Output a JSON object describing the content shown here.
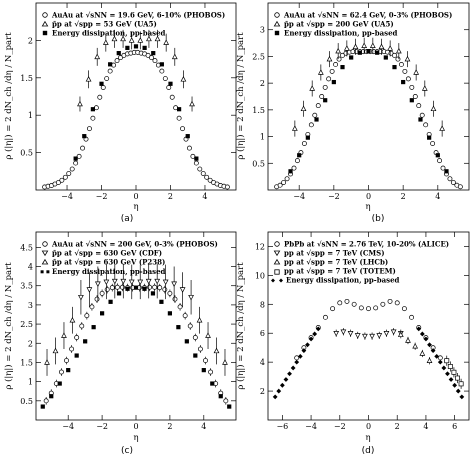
{
  "figure": {
    "panels": [
      "a",
      "b",
      "c",
      "d"
    ]
  },
  "chart_data": [
    {
      "type": "scatter",
      "panel_label": "(a)",
      "xlabel": "η",
      "ylabel": "ρ (|η|) = 2 dN_ch /dη / N_part",
      "xlim": [
        -5.8,
        5.8
      ],
      "ylim": [
        0,
        2.5
      ],
      "xticks": [
        -4,
        -2,
        0,
        2,
        4
      ],
      "yticks": [
        0.5,
        1,
        1.5,
        2
      ],
      "ytick_labels": [
        "0.5",
        "1",
        "1.5",
        "2"
      ],
      "grid": false,
      "legend_position": "top-left",
      "series": [
        {
          "name": "AuAu at √sNN = 19.6 GeV, 6-10% (PHOBOS)",
          "marker": "circle-open",
          "x": [
            -5.3,
            -5.1,
            -4.9,
            -4.7,
            -4.5,
            -4.3,
            -4.1,
            -3.9,
            -3.7,
            -3.5,
            -3.3,
            -3.1,
            -2.9,
            -2.7,
            -2.5,
            -2.3,
            -2.1,
            -1.9,
            -1.7,
            -1.5,
            -1.3,
            -1.1,
            -0.9,
            -0.7,
            -0.5,
            -0.3,
            -0.1,
            0.1,
            0.3,
            0.5,
            0.7,
            0.9,
            1.1,
            1.3,
            1.5,
            1.7,
            1.9,
            2.1,
            2.3,
            2.5,
            2.7,
            2.9,
            3.1,
            3.3,
            3.5,
            3.7,
            3.9,
            4.1,
            4.3,
            4.5,
            4.7,
            4.9,
            5.1,
            5.3
          ],
          "y": [
            0.04,
            0.05,
            0.06,
            0.08,
            0.1,
            0.13,
            0.17,
            0.22,
            0.28,
            0.36,
            0.45,
            0.56,
            0.68,
            0.82,
            0.96,
            1.1,
            1.24,
            1.37,
            1.49,
            1.59,
            1.67,
            1.73,
            1.77,
            1.8,
            1.82,
            1.83,
            1.84,
            1.84,
            1.83,
            1.82,
            1.8,
            1.77,
            1.73,
            1.67,
            1.59,
            1.49,
            1.37,
            1.24,
            1.1,
            0.96,
            0.82,
            0.68,
            0.56,
            0.45,
            0.36,
            0.28,
            0.22,
            0.17,
            0.13,
            0.1,
            0.08,
            0.06,
            0.05,
            0.04
          ]
        },
        {
          "name": "p̄p at √spp = 53 GeV (UA5)",
          "marker": "triangle-open",
          "x": [
            -3.25,
            -2.75,
            -2.25,
            -1.75,
            -1.25,
            -0.75,
            -0.25,
            0.25,
            0.75,
            1.25,
            1.75,
            2.25,
            2.75,
            3.25
          ],
          "y": [
            1.15,
            1.48,
            1.78,
            1.97,
            2.02,
            2.02,
            2.0,
            2.0,
            2.02,
            2.02,
            1.97,
            1.78,
            1.48,
            1.15
          ],
          "err": [
            0.1,
            0.12,
            0.12,
            0.12,
            0.12,
            0.12,
            0.12,
            0.12,
            0.12,
            0.12,
            0.12,
            0.12,
            0.12,
            0.1
          ]
        },
        {
          "name": "Energy dissipation, pp-based",
          "marker": "square-filled",
          "x": [
            -3.5,
            -3.0,
            -2.5,
            -2.0,
            -1.5,
            -1.0,
            -0.5,
            0.0,
            0.5,
            1.0,
            1.5,
            2.0,
            2.5,
            3.0,
            3.5
          ],
          "y": [
            0.42,
            0.72,
            1.08,
            1.42,
            1.68,
            1.83,
            1.9,
            1.92,
            1.9,
            1.83,
            1.68,
            1.42,
            1.08,
            0.72,
            0.42
          ]
        }
      ]
    },
    {
      "type": "scatter",
      "panel_label": "(b)",
      "xlabel": "η",
      "ylabel": "ρ (|η|) = 2 dN_ch /dη / N_part",
      "xlim": [
        -5.8,
        5.8
      ],
      "ylim": [
        0,
        3.5
      ],
      "xticks": [
        -4,
        -2,
        0,
        2,
        4
      ],
      "yticks": [
        0.5,
        1,
        1.5,
        2,
        2.5,
        3
      ],
      "ytick_labels": [
        "0.5",
        "1",
        "1.5",
        "2",
        "2.5",
        "3"
      ],
      "grid": false,
      "legend_position": "top-left",
      "series": [
        {
          "name": "AuAu at √sNN = 62.4 GeV, 0-3% (PHOBOS)",
          "marker": "circle-open",
          "x": [
            -5.3,
            -5.1,
            -4.9,
            -4.7,
            -4.5,
            -4.3,
            -4.1,
            -3.9,
            -3.7,
            -3.5,
            -3.3,
            -3.1,
            -2.9,
            -2.7,
            -2.5,
            -2.3,
            -2.1,
            -1.9,
            -1.7,
            -1.5,
            -1.3,
            -1.1,
            -0.9,
            -0.7,
            -0.5,
            -0.3,
            -0.1,
            0.1,
            0.3,
            0.5,
            0.7,
            0.9,
            1.1,
            1.3,
            1.5,
            1.7,
            1.9,
            2.1,
            2.3,
            2.5,
            2.7,
            2.9,
            3.1,
            3.3,
            3.5,
            3.7,
            3.9,
            4.1,
            4.3,
            4.5,
            4.7,
            4.9,
            5.1,
            5.3
          ],
          "y": [
            0.06,
            0.09,
            0.14,
            0.21,
            0.3,
            0.41,
            0.55,
            0.7,
            0.87,
            1.04,
            1.22,
            1.4,
            1.58,
            1.75,
            1.92,
            2.08,
            2.22,
            2.35,
            2.45,
            2.52,
            2.56,
            2.58,
            2.59,
            2.59,
            2.59,
            2.59,
            2.59,
            2.59,
            2.59,
            2.59,
            2.59,
            2.59,
            2.58,
            2.56,
            2.52,
            2.45,
            2.35,
            2.22,
            2.08,
            1.92,
            1.75,
            1.58,
            1.4,
            1.22,
            1.04,
            0.87,
            0.7,
            0.55,
            0.41,
            0.3,
            0.21,
            0.14,
            0.09,
            0.06
          ]
        },
        {
          "name": "p̄p at √spp = 200 GeV (UA5)",
          "marker": "triangle-open",
          "x": [
            -4.25,
            -3.75,
            -3.25,
            -2.75,
            -2.25,
            -1.75,
            -1.25,
            -0.75,
            -0.25,
            0.25,
            0.75,
            1.25,
            1.75,
            2.25,
            2.75,
            3.25,
            3.75,
            4.25
          ],
          "y": [
            1.15,
            1.52,
            1.9,
            2.2,
            2.45,
            2.6,
            2.65,
            2.68,
            2.7,
            2.7,
            2.68,
            2.65,
            2.6,
            2.45,
            2.2,
            1.9,
            1.52,
            1.15
          ],
          "err": [
            0.15,
            0.15,
            0.15,
            0.15,
            0.15,
            0.15,
            0.15,
            0.15,
            0.15,
            0.15,
            0.15,
            0.15,
            0.15,
            0.15,
            0.15,
            0.15,
            0.15,
            0.15
          ]
        },
        {
          "name": "Energy dissipation, pp-based",
          "marker": "square-filled",
          "x": [
            -4.5,
            -4.0,
            -3.5,
            -3.0,
            -2.5,
            -2.0,
            -1.5,
            -1.0,
            -0.5,
            0.0,
            0.5,
            1.0,
            1.5,
            2.0,
            2.5,
            3.0,
            3.5,
            4.0,
            4.5
          ],
          "y": [
            0.35,
            0.65,
            0.98,
            1.32,
            1.68,
            2.02,
            2.3,
            2.48,
            2.57,
            2.6,
            2.57,
            2.48,
            2.3,
            2.02,
            1.68,
            1.32,
            0.98,
            0.65,
            0.35
          ]
        }
      ]
    },
    {
      "type": "scatter",
      "panel_label": "(c)",
      "xlabel": "η",
      "ylabel": "ρ (|η|) = 2 dN_ch /dη / N_part",
      "xlim": [
        -5.9,
        5.9
      ],
      "ylim": [
        0,
        4.9
      ],
      "xticks": [
        -4,
        -2,
        0,
        2,
        4
      ],
      "yticks": [
        0.5,
        1,
        1.5,
        2,
        2.5,
        3,
        3.5,
        4,
        4.5
      ],
      "ytick_labels": [
        "0.5",
        "1",
        "1.5",
        "2",
        "2.5",
        "3",
        "3.5",
        "4",
        "4.5"
      ],
      "grid": false,
      "legend_position": "top-left",
      "series": [
        {
          "name": "AuAu at √sNN = 200 GeV, 0-3% (PHOBOS)",
          "marker": "circle-open",
          "x": [
            -5.3,
            -5.0,
            -4.7,
            -4.4,
            -4.1,
            -3.8,
            -3.5,
            -3.2,
            -2.9,
            -2.6,
            -2.3,
            -2.0,
            -1.7,
            -1.4,
            -1.1,
            -0.8,
            -0.5,
            -0.2,
            0.2,
            0.5,
            0.8,
            1.1,
            1.4,
            1.7,
            2.0,
            2.3,
            2.6,
            2.9,
            3.2,
            3.5,
            3.8,
            4.1,
            4.4,
            4.7,
            5.0,
            5.3
          ],
          "y": [
            0.5,
            0.7,
            0.95,
            1.25,
            1.55,
            1.85,
            2.15,
            2.45,
            2.72,
            2.95,
            3.15,
            3.3,
            3.4,
            3.45,
            3.46,
            3.46,
            3.45,
            3.45,
            3.45,
            3.45,
            3.46,
            3.46,
            3.45,
            3.4,
            3.3,
            3.15,
            2.95,
            2.72,
            2.45,
            2.15,
            1.85,
            1.55,
            1.25,
            0.95,
            0.7,
            0.5
          ],
          "err": [
            0.1,
            0.1,
            0.1,
            0.1,
            0.1,
            0.1,
            0.1,
            0.1,
            0.1,
            0.1,
            0.1,
            0.1,
            0.1,
            0.1,
            0.1,
            0.1,
            0.1,
            0.1,
            0.1,
            0.1,
            0.1,
            0.1,
            0.1,
            0.1,
            0.1,
            0.1,
            0.1,
            0.1,
            0.1,
            0.1,
            0.1,
            0.1,
            0.1,
            0.1,
            0.1,
            0.1
          ]
        },
        {
          "name": "p̄p at √spp = 630 GeV (CDF)",
          "marker": "triangle-down-open",
          "x": [
            -3.25,
            -2.75,
            -2.25,
            -1.75,
            -1.25,
            -0.75,
            -0.25,
            0.25,
            0.75,
            1.25,
            1.75,
            2.25,
            2.75,
            3.25
          ],
          "y": [
            3.2,
            3.4,
            3.55,
            3.6,
            3.62,
            3.62,
            3.6,
            3.6,
            3.62,
            3.62,
            3.6,
            3.55,
            3.4,
            3.2
          ],
          "err": [
            0.45,
            0.45,
            0.45,
            0.45,
            0.45,
            0.45,
            0.45,
            0.45,
            0.45,
            0.45,
            0.45,
            0.45,
            0.45,
            0.45
          ]
        },
        {
          "name": "p̄p at √spp = 630 GeV (P238)",
          "marker": "triangle-open",
          "x": [
            -5.25,
            -4.75,
            -4.25,
            -3.75,
            3.75,
            4.25,
            4.75,
            5.25
          ],
          "y": [
            1.5,
            1.8,
            2.2,
            2.6,
            2.6,
            2.2,
            1.8,
            1.5
          ],
          "err": [
            0.35,
            0.35,
            0.35,
            0.35,
            0.35,
            0.35,
            0.35,
            0.35
          ]
        },
        {
          "name": "Energy dissipation, pp-based",
          "marker": "square-filled",
          "x": [
            -5.5,
            -5.0,
            -4.5,
            -4.0,
            -3.5,
            -3.0,
            -2.5,
            -2.0,
            -1.5,
            -1.0,
            -0.5,
            0.0,
            0.5,
            1.0,
            1.5,
            2.0,
            2.5,
            3.0,
            3.5,
            4.0,
            4.5,
            5.0,
            5.5
          ],
          "y": [
            0.35,
            0.62,
            0.95,
            1.3,
            1.68,
            2.05,
            2.42,
            2.78,
            3.08,
            3.3,
            3.42,
            3.45,
            3.42,
            3.3,
            3.08,
            2.78,
            2.42,
            2.05,
            1.68,
            1.3,
            0.95,
            0.62,
            0.35
          ]
        }
      ]
    },
    {
      "type": "scatter",
      "panel_label": "(d)",
      "xlabel": "η",
      "ylabel": "ρ (|η|) = 2 dN_ch /dη / N_part",
      "xlim": [
        -7.0,
        7.0
      ],
      "ylim": [
        0,
        13.0
      ],
      "xticks": [
        -6,
        -4,
        -2,
        0,
        2,
        4,
        6
      ],
      "yticks": [
        2,
        4,
        6,
        8,
        10,
        12
      ],
      "ytick_labels": [
        "2",
        "4",
        "6",
        "8",
        "10",
        "12"
      ],
      "grid": false,
      "legend_position": "top-left",
      "series": [
        {
          "name": "PbPb at √sNN = 2.76 TeV, 10-20% (ALICE)",
          "marker": "circle-open",
          "x": [
            -5.0,
            -4.5,
            -4.0,
            -3.5,
            -3.0,
            -2.5,
            -2.0,
            -1.5,
            -1.0,
            -0.5,
            0.0,
            0.5,
            1.0,
            1.5,
            2.0,
            2.5,
            3.0,
            3.5,
            4.0,
            4.5,
            5.0
          ],
          "y": [
            4.3,
            5.0,
            5.7,
            6.4,
            7.1,
            7.7,
            8.1,
            8.2,
            8.0,
            7.75,
            7.7,
            7.75,
            8.0,
            8.2,
            8.1,
            7.7,
            7.1,
            6.4,
            5.7,
            5.0,
            4.3
          ]
        },
        {
          "name": "pp at √spp = 7 TeV (CMS)",
          "marker": "triangle-down-open",
          "x": [
            -2.25,
            -1.75,
            -1.25,
            -0.75,
            -0.25,
            0.25,
            0.75,
            1.25,
            1.75,
            2.25
          ],
          "y": [
            6.0,
            6.1,
            6.0,
            5.85,
            5.8,
            5.8,
            5.85,
            6.0,
            6.1,
            6.0
          ],
          "err": [
            0.25,
            0.25,
            0.25,
            0.25,
            0.25,
            0.25,
            0.25,
            0.25,
            0.25,
            0.25
          ]
        },
        {
          "name": "pp at √spp = 7 TeV (LHCb)",
          "marker": "triangle-open",
          "x": [
            2.25,
            2.75,
            3.25,
            3.75,
            4.25
          ],
          "y": [
            5.9,
            5.5,
            5.1,
            4.6,
            4.1
          ],
          "err": [
            0.25,
            0.25,
            0.25,
            0.25,
            0.25
          ]
        },
        {
          "name": "pp at √spp = 7 TeV (TOTEM)",
          "marker": "square-open",
          "x": [
            5.45,
            5.7,
            5.95,
            6.2,
            6.45
          ],
          "y": [
            4.1,
            3.7,
            3.3,
            2.9,
            2.5
          ],
          "err": [
            0.35,
            0.35,
            0.35,
            0.35,
            0.35
          ]
        },
        {
          "name": "Energy dissipation, pp-based",
          "marker": "diamond-filled",
          "x": [
            -6.5,
            -6.25,
            -6.0,
            -5.75,
            -5.5,
            -5.25,
            -5.0,
            -4.75,
            -4.5,
            -4.25,
            -4.0,
            -3.75,
            -3.5,
            3.5,
            3.75,
            4.0,
            4.25,
            4.5,
            4.75,
            5.0,
            5.25,
            5.5,
            5.75,
            6.0,
            6.25,
            6.5
          ],
          "y": [
            1.6,
            2.0,
            2.4,
            2.8,
            3.2,
            3.6,
            4.0,
            4.4,
            4.8,
            5.2,
            5.6,
            5.95,
            6.3,
            6.3,
            5.95,
            5.6,
            5.2,
            4.8,
            4.4,
            4.0,
            3.6,
            3.2,
            2.8,
            2.4,
            2.0,
            1.6
          ]
        }
      ]
    }
  ]
}
